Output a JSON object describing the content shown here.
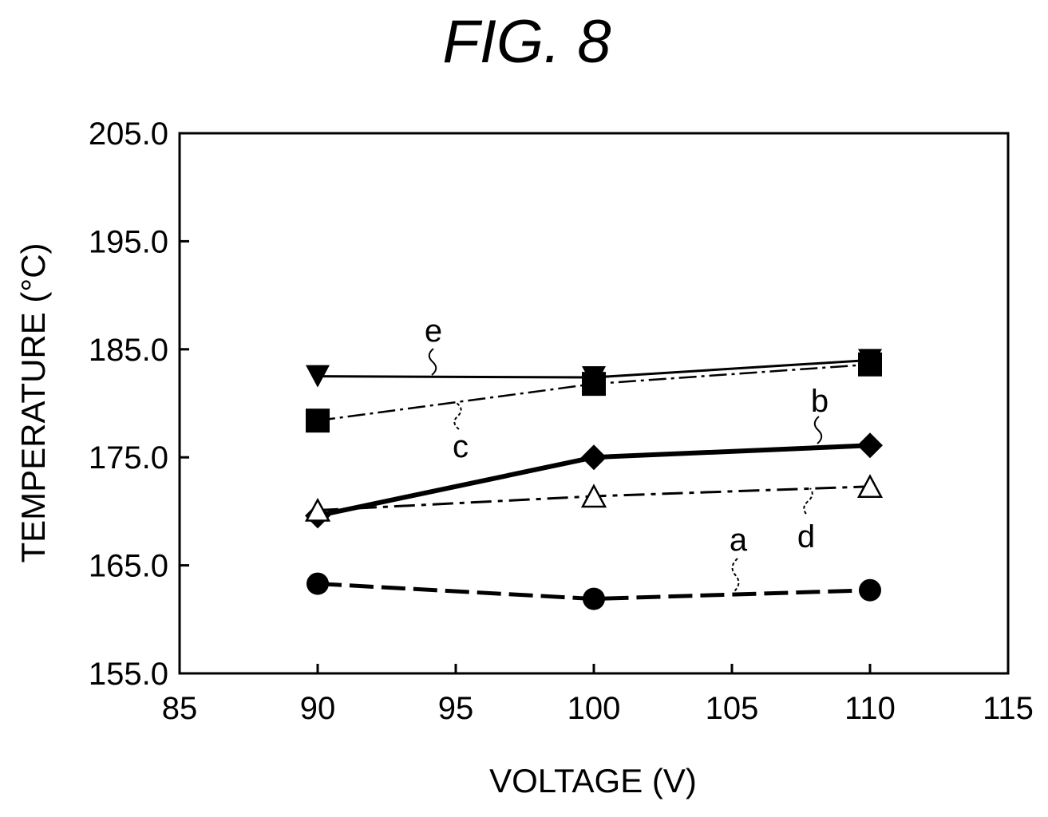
{
  "figure_title": "FIG. 8",
  "chart_data": {
    "type": "line",
    "title": "FIG. 8",
    "xlabel": "VOLTAGE (V)",
    "ylabel": "TEMPERATURE (°C)",
    "xlim": [
      85,
      115
    ],
    "ylim": [
      155,
      205
    ],
    "xticks": [
      "85",
      "90",
      "95",
      "100",
      "105",
      "110",
      "115"
    ],
    "yticks": [
      "155.0",
      "165.0",
      "175.0",
      "185.0",
      "195.0",
      "205.0"
    ],
    "x": [
      90,
      100,
      110
    ],
    "grid": false,
    "legend": "none",
    "series": [
      {
        "name": "a",
        "values": [
          163.3,
          161.9,
          162.7
        ],
        "marker": "circle",
        "line": "dashed-thick"
      },
      {
        "name": "b",
        "values": [
          169.6,
          175.0,
          176.1
        ],
        "marker": "diamond",
        "line": "solid-thick"
      },
      {
        "name": "c",
        "values": [
          178.4,
          181.8,
          183.6
        ],
        "marker": "square",
        "line": "dash-dot-thin"
      },
      {
        "name": "d",
        "values": [
          170.1,
          171.4,
          172.3
        ],
        "marker": "triangle-open",
        "line": "dash-dot"
      },
      {
        "name": "e",
        "values": [
          182.5,
          182.4,
          184.0
        ],
        "marker": "triangle-down",
        "line": "solid-thin"
      }
    ]
  }
}
